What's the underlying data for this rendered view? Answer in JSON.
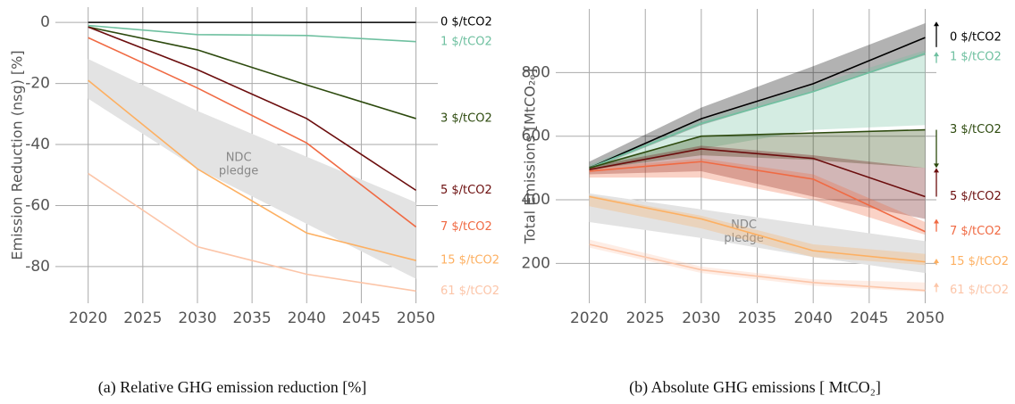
{
  "chart_data": [
    {
      "type": "line",
      "ylabel": "Emission Reduction (nsg) [%]",
      "caption": "(a) Relative GHG emission reduction [%]",
      "x": [
        2020,
        2030,
        2040,
        2050
      ],
      "xlim": [
        2017,
        2052
      ],
      "ylim": [
        -92,
        5
      ],
      "xticks": [
        2020,
        2025,
        2030,
        2035,
        2040,
        2045,
        2050
      ],
      "yticks": [
        -80,
        -60,
        -40,
        -20,
        0
      ],
      "grid": true,
      "band": {
        "label": [
          "NDC",
          "pledge"
        ],
        "color": "#e3e3e3",
        "upper": [
          -12,
          -29,
          -44,
          -59
        ],
        "lower": [
          -25,
          -48,
          -66,
          -84
        ]
      },
      "series": [
        {
          "name": "0 $/tCO2",
          "color": "#000000",
          "values": [
            0,
            0,
            0,
            0
          ]
        },
        {
          "name": "1 $/tCO2",
          "color": "#6fc0a0",
          "values": [
            -1,
            -4,
            -4.3,
            -6.3
          ]
        },
        {
          "name": "3 $/tCO2",
          "color": "#2d4a0e",
          "values": [
            -1.5,
            -9,
            -20.5,
            -31.5
          ]
        },
        {
          "name": "5 $/tCO2",
          "color": "#6b0d0d",
          "values": [
            -1.5,
            -15.5,
            -31.5,
            -55
          ]
        },
        {
          "name": "7 $/tCO2",
          "color": "#f06a43",
          "values": [
            -5,
            -21.5,
            -39.5,
            -67
          ]
        },
        {
          "name": "15 $/tCO2",
          "color": "#fdb062",
          "values": [
            -19,
            -48,
            -69,
            -78
          ]
        },
        {
          "name": "61 $/tCO2",
          "color": "#fcc5a8",
          "values": [
            -49.5,
            -73.5,
            -82.5,
            -88
          ]
        }
      ]
    },
    {
      "type": "line",
      "ylabel": "Total Emissions [MtCO₂ₑ]",
      "caption": "(b) Absolute GHG emissions [ MtCO₂]",
      "x": [
        2020,
        2030,
        2040,
        2050
      ],
      "xlim": [
        2017,
        2051
      ],
      "ylim": [
        75,
        1000
      ],
      "xticks": [
        2020,
        2025,
        2030,
        2035,
        2040,
        2045,
        2050
      ],
      "yticks": [
        200,
        400,
        600,
        800
      ],
      "grid": true,
      "band": {
        "label": [
          "NDC",
          "pledge"
        ],
        "color": "#e3e3e3",
        "upper": [
          420,
          370,
          320,
          270
        ],
        "lower": [
          330,
          280,
          220,
          170
        ]
      },
      "series": [
        {
          "name": "0 $/tCO2",
          "color": "#000000",
          "values": [
            500,
            655,
            765,
            910
          ],
          "lower": [
            495,
            635,
            740,
            855
          ],
          "upper": [
            520,
            690,
            820,
            955
          ],
          "arrow": [
            880,
            960
          ]
        },
        {
          "name": "1 $/tCO2",
          "color": "#6fc0a0",
          "values": [
            500,
            640,
            740,
            860
          ],
          "lower": [
            490,
            560,
            620,
            635
          ],
          "upper": [
            510,
            650,
            760,
            870
          ],
          "arrow": [
            830,
            865
          ]
        },
        {
          "name": "3 $/tCO2",
          "color": "#2d4a0e",
          "values": [
            500,
            600,
            610,
            620
          ],
          "lower": [
            495,
            540,
            525,
            500
          ],
          "upper": [
            505,
            600,
            610,
            620
          ],
          "arrow": [
            620,
            500
          ]
        },
        {
          "name": "5 $/tCO2",
          "color": "#6b0d0d",
          "values": [
            495,
            560,
            530,
            410
          ],
          "lower": [
            480,
            490,
            410,
            340
          ],
          "upper": [
            505,
            570,
            540,
            500
          ],
          "arrow": [
            410,
            500
          ]
        },
        {
          "name": "7 $/tCO2",
          "color": "#f06a43",
          "values": [
            490,
            520,
            465,
            300
          ],
          "lower": [
            470,
            470,
            400,
            290
          ],
          "upper": [
            500,
            530,
            480,
            330
          ],
          "arrow": [
            300,
            340
          ]
        },
        {
          "name": "15 $/tCO2",
          "color": "#fdb062",
          "values": [
            410,
            340,
            240,
            205
          ],
          "lower": [
            380,
            310,
            220,
            195
          ],
          "upper": [
            415,
            350,
            260,
            230
          ],
          "arrow": [
            195,
            215
          ]
        },
        {
          "name": "61 $/tCO2",
          "color": "#fcc5a8",
          "values": [
            260,
            180,
            140,
            115
          ],
          "lower": [
            250,
            170,
            130,
            110
          ],
          "upper": [
            275,
            190,
            150,
            140
          ],
          "arrow": [
            110,
            140
          ]
        }
      ]
    }
  ]
}
